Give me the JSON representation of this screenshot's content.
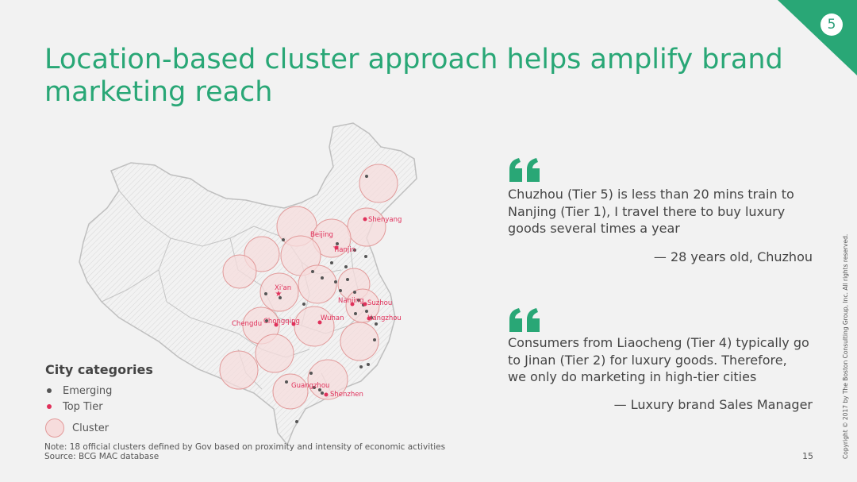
{
  "page_number": "5",
  "title": "Location-based cluster approach helps amplify brand marketing reach",
  "map": {
    "cities": {
      "shenyang": "Shenyang",
      "beijing": "Beijing",
      "tianjin": "Tianjin",
      "xian": "Xi'an",
      "nanjing": "Nanjing",
      "suzhou": "Suzhou",
      "chengdu": "Chengdu",
      "chongqing": "Chongqing",
      "wuhan": "Wuhan",
      "hangzhou": "Hangzhou",
      "guangzhou": "Guangzhou",
      "shenzhen": "Shenzhen"
    }
  },
  "legend": {
    "title": "City categories",
    "emerging": "Emerging",
    "top_tier": "Top Tier",
    "cluster": "Cluster"
  },
  "quotes": [
    {
      "lines": [
        "Chuzhou (Tier 5) is less than 20 mins train to",
        "Nanjing (Tier 1), I travel there to buy luxury",
        "goods several times a year"
      ],
      "attribution": "— 28 years old, Chuzhou"
    },
    {
      "lines": [
        "Consumers from Liaocheng (Tier 4) typically go",
        "to Jinan (Tier 2) for luxury goods. Therefore,",
        "we only do marketing in high-tier cities"
      ],
      "attribution": "— Luxury brand Sales Manager"
    }
  ],
  "note": "Note: 18 official clusters defined by Gov based on proximity and intensity of economic activities",
  "source": "Source: BCG MAC database",
  "footer_page": "15",
  "copyright": "Copyright © 2017 by The Boston Consulting Group, Inc. All rights reserved.",
  "colors": {
    "accent_green": "#29a776",
    "top_tier_red": "#e0305a",
    "emerging_gray": "#555555",
    "cluster_fill": "#f6dcdc",
    "cluster_stroke": "#e29a9a"
  }
}
